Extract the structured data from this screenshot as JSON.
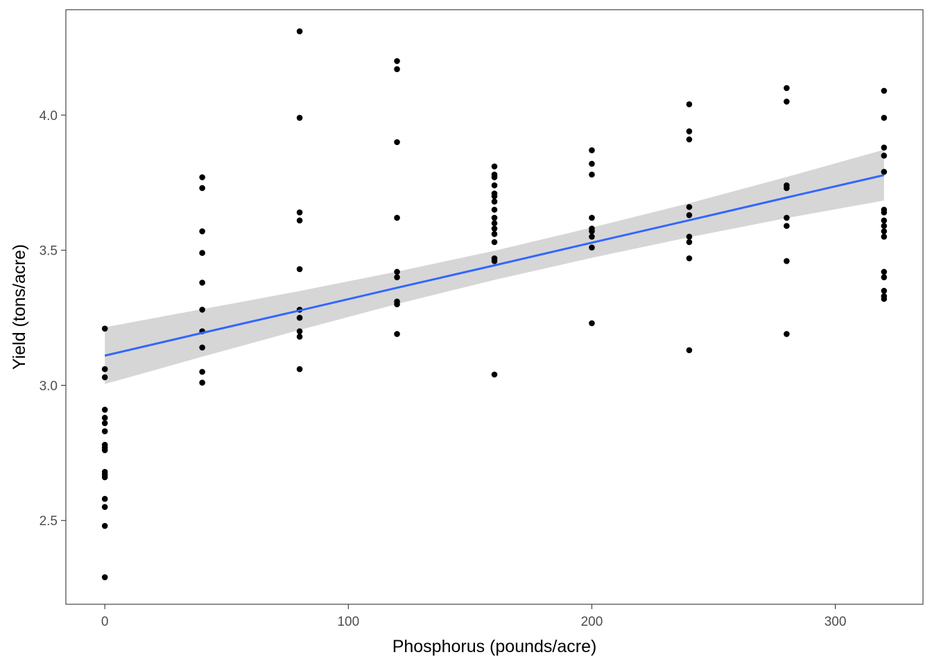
{
  "chart_data": {
    "type": "scatter",
    "title": "",
    "xlabel": "Phosphorus (pounds/acre)",
    "ylabel": "Yield (tons/acre)",
    "xlim": [
      -16,
      336
    ],
    "ylim": [
      2.19,
      4.39
    ],
    "x_ticks": [
      0,
      100,
      200,
      300
    ],
    "x_tick_labels": [
      "0",
      "100",
      "200",
      "300"
    ],
    "y_ticks": [
      2.5,
      3.0,
      3.5,
      4.0
    ],
    "y_tick_labels": [
      "2.5",
      "3.0",
      "3.5",
      "4.0"
    ],
    "grid": false,
    "legend": "none",
    "colors": {
      "points": "#000000",
      "fit_line": "#3366FF",
      "confidence_band": "#999999",
      "panel_border": "#333333",
      "tick_label": "#4d4d4d"
    },
    "points": [
      [
        0,
        3.21
      ],
      [
        0,
        3.06
      ],
      [
        0,
        3.03
      ],
      [
        0,
        2.91
      ],
      [
        0,
        2.88
      ],
      [
        0,
        2.86
      ],
      [
        0,
        2.83
      ],
      [
        0,
        2.78
      ],
      [
        0,
        2.77
      ],
      [
        0,
        2.76
      ],
      [
        0,
        2.68
      ],
      [
        0,
        2.67
      ],
      [
        0,
        2.66
      ],
      [
        0,
        2.58
      ],
      [
        0,
        2.55
      ],
      [
        0,
        2.48
      ],
      [
        0,
        2.29
      ],
      [
        40,
        3.77
      ],
      [
        40,
        3.73
      ],
      [
        40,
        3.57
      ],
      [
        40,
        3.49
      ],
      [
        40,
        3.38
      ],
      [
        40,
        3.28
      ],
      [
        40,
        3.2
      ],
      [
        40,
        3.14
      ],
      [
        40,
        3.05
      ],
      [
        40,
        3.01
      ],
      [
        80,
        4.31
      ],
      [
        80,
        3.99
      ],
      [
        80,
        3.64
      ],
      [
        80,
        3.61
      ],
      [
        80,
        3.43
      ],
      [
        80,
        3.28
      ],
      [
        80,
        3.25
      ],
      [
        80,
        3.2
      ],
      [
        80,
        3.18
      ],
      [
        80,
        3.06
      ],
      [
        120,
        4.2
      ],
      [
        120,
        4.17
      ],
      [
        120,
        3.9
      ],
      [
        120,
        3.62
      ],
      [
        120,
        3.42
      ],
      [
        120,
        3.4
      ],
      [
        120,
        3.31
      ],
      [
        120,
        3.3
      ],
      [
        120,
        3.19
      ],
      [
        160,
        3.81
      ],
      [
        160,
        3.78
      ],
      [
        160,
        3.77
      ],
      [
        160,
        3.74
      ],
      [
        160,
        3.71
      ],
      [
        160,
        3.7
      ],
      [
        160,
        3.68
      ],
      [
        160,
        3.65
      ],
      [
        160,
        3.62
      ],
      [
        160,
        3.6
      ],
      [
        160,
        3.58
      ],
      [
        160,
        3.56
      ],
      [
        160,
        3.53
      ],
      [
        160,
        3.47
      ],
      [
        160,
        3.46
      ],
      [
        160,
        3.04
      ],
      [
        200,
        3.87
      ],
      [
        200,
        3.82
      ],
      [
        200,
        3.78
      ],
      [
        200,
        3.62
      ],
      [
        200,
        3.58
      ],
      [
        200,
        3.57
      ],
      [
        200,
        3.55
      ],
      [
        200,
        3.51
      ],
      [
        200,
        3.23
      ],
      [
        240,
        4.04
      ],
      [
        240,
        3.94
      ],
      [
        240,
        3.91
      ],
      [
        240,
        3.66
      ],
      [
        240,
        3.63
      ],
      [
        240,
        3.55
      ],
      [
        240,
        3.53
      ],
      [
        240,
        3.47
      ],
      [
        240,
        3.13
      ],
      [
        280,
        4.1
      ],
      [
        280,
        4.05
      ],
      [
        280,
        3.74
      ],
      [
        280,
        3.73
      ],
      [
        280,
        3.62
      ],
      [
        280,
        3.59
      ],
      [
        280,
        3.46
      ],
      [
        280,
        3.19
      ],
      [
        320,
        4.09
      ],
      [
        320,
        3.99
      ],
      [
        320,
        3.88
      ],
      [
        320,
        3.85
      ],
      [
        320,
        3.79
      ],
      [
        320,
        3.65
      ],
      [
        320,
        3.64
      ],
      [
        320,
        3.61
      ],
      [
        320,
        3.59
      ],
      [
        320,
        3.57
      ],
      [
        320,
        3.55
      ],
      [
        320,
        3.42
      ],
      [
        320,
        3.4
      ],
      [
        320,
        3.35
      ],
      [
        320,
        3.33
      ],
      [
        320,
        3.32
      ]
    ],
    "fit": {
      "x": [
        0,
        40,
        80,
        120,
        160,
        200,
        240,
        280,
        320
      ],
      "y": [
        3.11,
        3.194,
        3.277,
        3.361,
        3.444,
        3.528,
        3.611,
        3.695,
        3.778
      ],
      "lower": [
        3.005,
        3.106,
        3.205,
        3.301,
        3.39,
        3.472,
        3.548,
        3.619,
        3.684
      ],
      "upper": [
        3.215,
        3.282,
        3.349,
        3.421,
        3.498,
        3.584,
        3.674,
        3.771,
        3.872
      ]
    }
  }
}
